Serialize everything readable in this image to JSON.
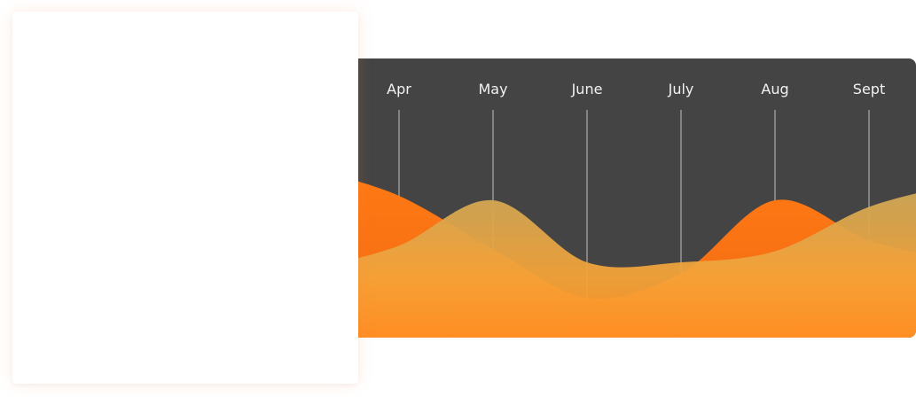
{
  "chart_data": {
    "type": "area",
    "categories": [
      "Apr",
      "May",
      "June",
      "July",
      "Aug",
      "Sept"
    ],
    "series": [
      {
        "values": [
          100,
          52,
          8,
          30,
          96,
          60
        ]
      },
      {
        "values": [
          55,
          96,
          40,
          40,
          50,
          90
        ]
      }
    ],
    "ylim": [
      0,
      100
    ],
    "grid": true,
    "colors": {
      "background": "#444444",
      "series_1": "#f96f14",
      "series_2_top": "#cba652",
      "series_2_bottom": "#ff9a2e",
      "gridline": "#d9d9d9",
      "label": "#f2f2f2"
    }
  }
}
